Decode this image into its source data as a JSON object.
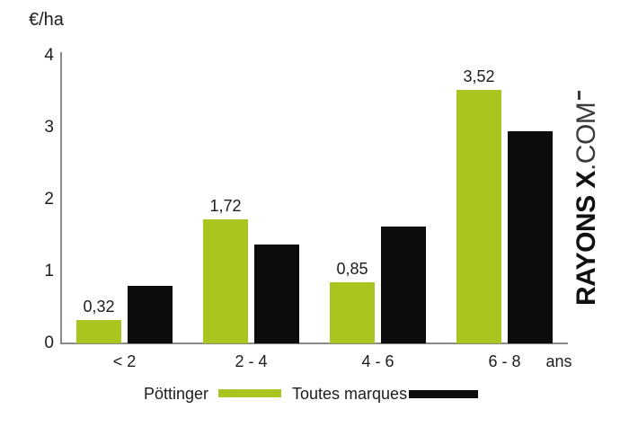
{
  "title": "€/ha",
  "x_unit": "ans",
  "watermark": {
    "bold": "RAYONS X",
    "light": ".COM"
  },
  "legend": [
    {
      "label": "Pöttinger",
      "color": "#a9c520"
    },
    {
      "label": "Toutes marques",
      "color": "#0c0c0c"
    }
  ],
  "colors": {
    "pottinger_green": "#a9c520",
    "toutes_marques_black": "#0c0c0c",
    "axis_gray": "#8a8a8a",
    "text": "#1d1d1d"
  },
  "chart_data": {
    "type": "bar",
    "categories": [
      "< 2",
      "2 - 4",
      "4 - 6",
      "6 - 8"
    ],
    "series": [
      {
        "name": "Pöttinger",
        "color": "#a9c520",
        "values": [
          0.32,
          1.72,
          0.85,
          3.52
        ],
        "labels": [
          "0,32",
          "1,72",
          "0,85",
          "3,52"
        ]
      },
      {
        "name": "Toutes marques",
        "color": "#0c0c0c",
        "values": [
          0.8,
          1.38,
          1.62,
          2.95
        ],
        "labels": []
      }
    ],
    "title": "",
    "ylabel": "€/ha",
    "xlabel": "ans",
    "ylim": [
      0,
      4
    ],
    "yticks": [
      0,
      1,
      2,
      3,
      4
    ],
    "grid": false,
    "legend_position": "bottom"
  }
}
